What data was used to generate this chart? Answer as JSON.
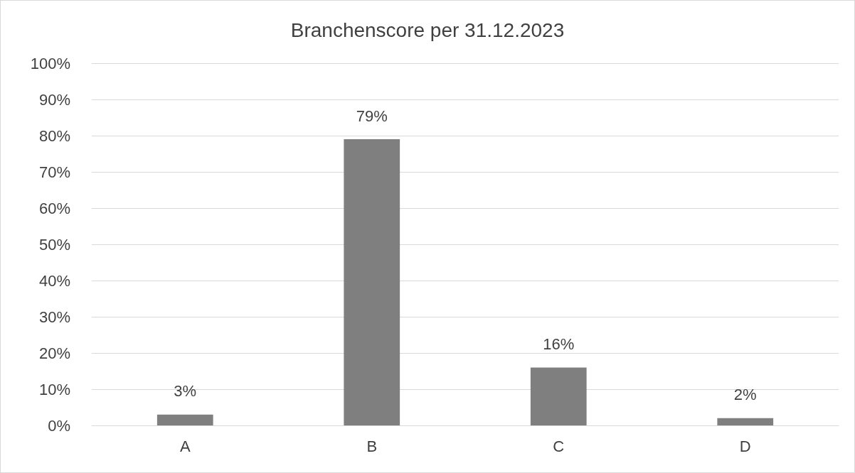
{
  "chart_data": {
    "type": "bar",
    "title": "Branchenscore per 31.12.2023",
    "categories": [
      "A",
      "B",
      "C",
      "D"
    ],
    "values": [
      3,
      79,
      16,
      2
    ],
    "value_labels": [
      "3%",
      "79%",
      "16%",
      "2%"
    ],
    "color": "#7f7f7f",
    "ylim": [
      0,
      100
    ],
    "yticks": [
      {
        "value": 0,
        "label": "0%"
      },
      {
        "value": 10,
        "label": "10%"
      },
      {
        "value": 20,
        "label": "20%"
      },
      {
        "value": 30,
        "label": "30%"
      },
      {
        "value": 40,
        "label": "40%"
      },
      {
        "value": 50,
        "label": "50%"
      },
      {
        "value": 60,
        "label": "60%"
      },
      {
        "value": 70,
        "label": "70%"
      },
      {
        "value": 80,
        "label": "80%"
      },
      {
        "value": 90,
        "label": "90%"
      },
      {
        "value": 100,
        "label": "100%"
      }
    ],
    "grid": "y"
  }
}
